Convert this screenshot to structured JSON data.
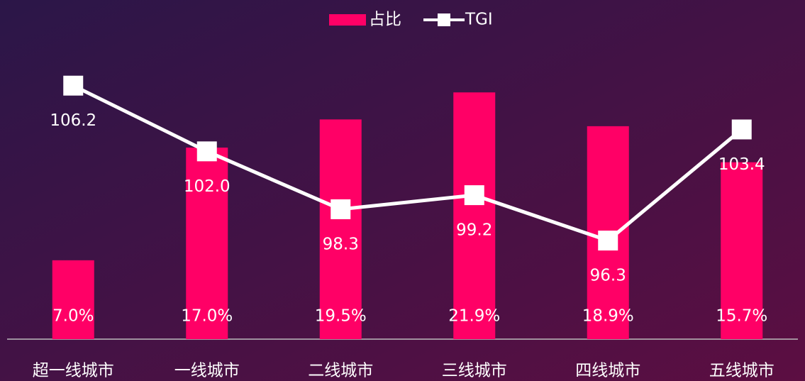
{
  "chart_data": {
    "type": "bar-line",
    "categories": [
      "超一线城市",
      "一线城市",
      "二线城市",
      "三线城市",
      "四线城市",
      "五线城市"
    ],
    "series": [
      {
        "name": "占比",
        "color": "#ff0066",
        "values": [
          7.0,
          17.0,
          19.5,
          21.9,
          18.9,
          15.7
        ],
        "value_labels": [
          "7.0%",
          "17.0%",
          "19.5%",
          "21.9%",
          "18.9%",
          "15.7%"
        ]
      },
      {
        "name": "TGI",
        "color": "#ffffff",
        "axis": "y2",
        "values": [
          106.2,
          102.0,
          98.3,
          99.2,
          96.3,
          103.4
        ],
        "value_labels": [
          "106.2",
          "102.0",
          "98.3",
          "99.2",
          "96.3",
          "103.4"
        ]
      }
    ],
    "ylim": [
      0,
      25
    ],
    "y2lim": [
      90,
      108
    ],
    "legend": "top"
  }
}
